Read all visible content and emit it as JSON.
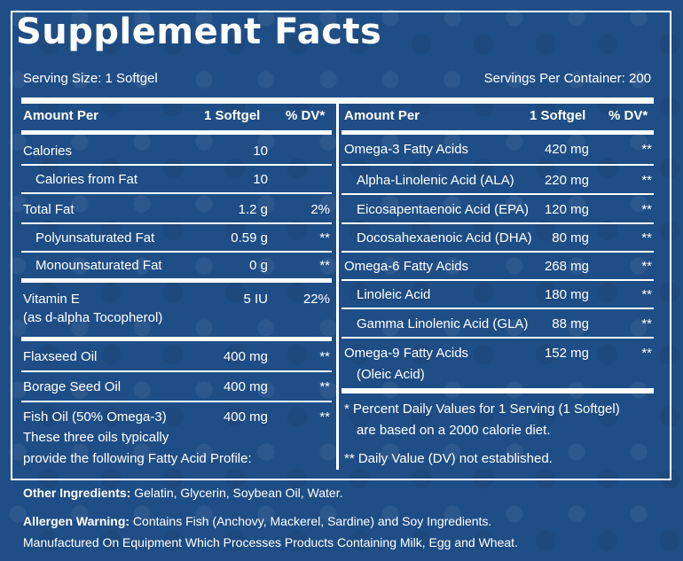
{
  "title": "Supplement Facts",
  "serving_size": "Serving Size: 1 Softgel",
  "servings_per_container": "Servings Per Container: 200",
  "headers": {
    "amount_per": "Amount Per",
    "unit": "1 Softgel",
    "dv": "% DV*"
  },
  "left_rows": [
    {
      "name": "Calories",
      "amount": "10",
      "dv": ""
    },
    {
      "name": "Calories from Fat",
      "amount": "10",
      "dv": ""
    },
    {
      "name": "Total Fat",
      "amount": "1.2 g",
      "dv": "2%"
    },
    {
      "name": "Polyunsaturated Fat",
      "amount": "0.59 g",
      "dv": "**"
    },
    {
      "name": "Monounsaturated Fat",
      "amount": "0 g",
      "dv": "**"
    },
    {
      "name": "Vitamin E",
      "name2": "(as d-alpha Tocopherol)",
      "amount": "5 IU",
      "dv": "22%"
    },
    {
      "name": "Flaxseed Oil",
      "amount": "400 mg",
      "dv": "**"
    },
    {
      "name": "Borage Seed Oil",
      "amount": "400 mg",
      "dv": "**"
    },
    {
      "name": "Fish Oil (50% Omega-3)",
      "amount": "400 mg",
      "dv": "**"
    }
  ],
  "oils_note_1": "These three oils typically",
  "oils_note_2": "provide the following Fatty Acid Profile:",
  "right_rows": [
    {
      "name": "Omega-3 Fatty Acids",
      "amount": "420 mg",
      "dv": "**"
    },
    {
      "name": "Alpha-Linolenic Acid (ALA)",
      "amount": "220 mg",
      "dv": "**"
    },
    {
      "name": "Eicosapentaenoic Acid (EPA)",
      "amount": "120 mg",
      "dv": "**"
    },
    {
      "name": "Docosahexaenoic Acid (DHA)",
      "amount": "80 mg",
      "dv": "**"
    },
    {
      "name": "Omega-6 Fatty Acids",
      "amount": "268 mg",
      "dv": "**"
    },
    {
      "name": "Linoleic Acid",
      "amount": "180 mg",
      "dv": "**"
    },
    {
      "name": "Gamma Linolenic Acid (GLA)",
      "amount": "88 mg",
      "dv": "**"
    },
    {
      "name": "Omega-9 Fatty Acids",
      "name2": "(Oleic Acid)",
      "amount": "152 mg",
      "dv": "**"
    }
  ],
  "dv_note_1": "* Percent Daily Values for 1 Serving (1 Softgel)",
  "dv_note_2": "are based on a 2000 calorie diet.",
  "dv_note_3": "** Daily Value (DV) not established.",
  "other_ingredients_label": "Other Ingredients:",
  "other_ingredients": " Gelatin, Glycerin, Soybean Oil, Water.",
  "allergen_label": "Allergen Warning:",
  "allergen_text": " Contains Fish (Anchovy, Mackerel, Sardine) and Soy Ingredients.",
  "manufactured": "Manufactured On Equipment Which Processes Products Containing Milk, Egg and Wheat."
}
